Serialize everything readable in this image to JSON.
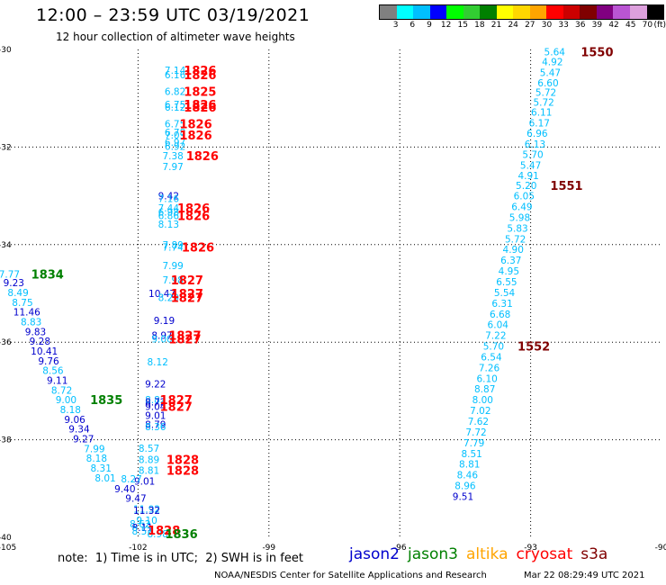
{
  "header": {
    "title": "12:00 – 23:59 UTC 03/19/2021",
    "subtitle": "12 hour collection of altimeter wave heights"
  },
  "colorbar": {
    "unit": "(ft)",
    "colors": [
      "#808080",
      "#00ffff",
      "#00bfff",
      "#0000ff",
      "#00ff00",
      "#32cd32",
      "#008000",
      "#ffff00",
      "#ffd700",
      "#ffa500",
      "#ff0000",
      "#cc0000",
      "#800000",
      "#800080",
      "#ba55d3",
      "#dda0dd",
      "#000000"
    ],
    "labels": [
      "3",
      "6",
      "9",
      "12",
      "15",
      "18",
      "21",
      "24",
      "27",
      "30",
      "33",
      "36",
      "39",
      "42",
      "45",
      "70"
    ]
  },
  "axes": {
    "x_ticks": [
      "-105",
      "-102",
      "-99",
      "-96",
      "-93",
      "-90"
    ],
    "y_ticks": [
      "-30",
      "-32",
      "-34",
      "-36",
      "-38",
      "-40"
    ],
    "x_values": [
      -105,
      -102,
      -99,
      -96,
      -93,
      -90
    ],
    "y_values": [
      -30,
      -32,
      -34,
      -36,
      -38,
      -40
    ],
    "xlim": [
      -105,
      -90
    ],
    "ylim": [
      -40,
      -30
    ]
  },
  "colors": {
    "cyan": "#00bfff",
    "blue": "#0000cd",
    "green": "#008000",
    "red": "#ff0000",
    "darkred": "#800000"
  },
  "tracks": {
    "track_a": [
      {
        "lon": -101.15,
        "lat": -30.42,
        "v": "7.14",
        "c": "cyan"
      },
      {
        "lon": -101.15,
        "lat": -30.52,
        "v": "6.16",
        "c": "cyan"
      },
      {
        "lon": -101.15,
        "lat": -30.86,
        "v": "6.82",
        "c": "cyan"
      },
      {
        "lon": -101.15,
        "lat": -31.13,
        "v": "6.75",
        "c": "cyan"
      },
      {
        "lon": -101.15,
        "lat": -31.18,
        "v": "6.12",
        "c": "cyan"
      },
      {
        "lon": -101.15,
        "lat": -31.52,
        "v": "6.75",
        "c": "cyan"
      },
      {
        "lon": -101.15,
        "lat": -31.7,
        "v": "6.78",
        "c": "cyan"
      },
      {
        "lon": -101.15,
        "lat": -31.75,
        "v": "7.03",
        "c": "cyan"
      },
      {
        "lon": -101.15,
        "lat": -31.9,
        "v": "6.97",
        "c": "cyan"
      },
      {
        "lon": -101.15,
        "lat": -31.98,
        "v": "6.92",
        "c": "cyan"
      },
      {
        "lon": -101.2,
        "lat": -32.18,
        "v": "7.38",
        "c": "cyan"
      },
      {
        "lon": -101.2,
        "lat": -32.4,
        "v": "7.97",
        "c": "cyan"
      },
      {
        "lon": -101.3,
        "lat": -33.0,
        "v": "9.42",
        "c": "blue"
      },
      {
        "lon": -101.3,
        "lat": -33.05,
        "v": "7.16",
        "c": "cyan"
      },
      {
        "lon": -101.3,
        "lat": -33.25,
        "v": "7.44",
        "c": "cyan"
      },
      {
        "lon": -101.3,
        "lat": -33.33,
        "v": "6.98",
        "c": "cyan"
      },
      {
        "lon": -101.3,
        "lat": -33.4,
        "v": "6.86",
        "c": "cyan"
      },
      {
        "lon": -101.3,
        "lat": -33.58,
        "v": "8.13",
        "c": "cyan"
      },
      {
        "lon": -101.2,
        "lat": -34.0,
        "v": "7.89",
        "c": "cyan"
      },
      {
        "lon": -101.2,
        "lat": -34.05,
        "v": "7.74",
        "c": "cyan"
      },
      {
        "lon": -101.2,
        "lat": -34.43,
        "v": "7.99",
        "c": "cyan"
      },
      {
        "lon": -101.2,
        "lat": -34.72,
        "v": "7.98",
        "c": "cyan"
      },
      {
        "lon": -101.45,
        "lat": -35.0,
        "v": "10.47",
        "c": "blue"
      },
      {
        "lon": -101.3,
        "lat": -35.08,
        "v": "8.29",
        "c": "cyan"
      },
      {
        "lon": -101.4,
        "lat": -35.55,
        "v": "9.19",
        "c": "blue"
      },
      {
        "lon": -101.45,
        "lat": -35.86,
        "v": "8.97",
        "c": "blue"
      },
      {
        "lon": -101.45,
        "lat": -35.93,
        "v": "9.00",
        "c": "cyan"
      },
      {
        "lon": -101.55,
        "lat": -36.4,
        "v": "8.12",
        "c": "cyan"
      },
      {
        "lon": -101.6,
        "lat": -36.85,
        "v": "9.22",
        "c": "blue"
      },
      {
        "lon": -101.6,
        "lat": -37.18,
        "v": "8.82",
        "c": "cyan"
      },
      {
        "lon": -101.6,
        "lat": -37.22,
        "v": "8.72",
        "c": "blue"
      },
      {
        "lon": -101.6,
        "lat": -37.32,
        "v": "9.04",
        "c": "blue"
      },
      {
        "lon": -101.6,
        "lat": -37.5,
        "v": "9.01",
        "c": "blue"
      },
      {
        "lon": -101.6,
        "lat": -37.68,
        "v": "8.79",
        "c": "blue"
      },
      {
        "lon": -101.6,
        "lat": -37.73,
        "v": "8.36",
        "c": "cyan"
      },
      {
        "lon": -101.75,
        "lat": -38.17,
        "v": "8.57",
        "c": "cyan"
      },
      {
        "lon": -101.75,
        "lat": -38.4,
        "v": "8.89",
        "c": "cyan"
      },
      {
        "lon": -101.75,
        "lat": -38.63,
        "v": "8.81",
        "c": "cyan"
      },
      {
        "lon": -101.85,
        "lat": -38.85,
        "v": "9.01",
        "c": "blue"
      },
      {
        "lon": -102.15,
        "lat": -38.8,
        "v": "8.27",
        "c": "cyan"
      },
      {
        "lon": -102.3,
        "lat": -39.0,
        "v": "9.40",
        "c": "blue"
      },
      {
        "lon": -102.05,
        "lat": -39.2,
        "v": "9.47",
        "c": "blue"
      },
      {
        "lon": -101.8,
        "lat": -39.42,
        "v": "11.92",
        "c": "cyan"
      },
      {
        "lon": -101.8,
        "lat": -39.45,
        "v": "11.32",
        "c": "blue"
      },
      {
        "lon": -101.8,
        "lat": -39.65,
        "v": "9.10",
        "c": "cyan"
      },
      {
        "lon": -101.95,
        "lat": -39.72,
        "v": "8.62",
        "c": "cyan"
      },
      {
        "lon": -101.9,
        "lat": -39.8,
        "v": "8.11",
        "c": "blue"
      },
      {
        "lon": -101.9,
        "lat": -39.87,
        "v": "8.52",
        "c": "cyan"
      },
      {
        "lon": -101.55,
        "lat": -39.93,
        "v": "8.98",
        "c": "cyan"
      }
    ],
    "track_b": [
      {
        "lon": -104.95,
        "lat": -34.6,
        "v": "7.77",
        "c": "cyan"
      },
      {
        "lon": -104.85,
        "lat": -34.78,
        "v": "9.23",
        "c": "blue"
      },
      {
        "lon": -104.75,
        "lat": -34.98,
        "v": "8.49",
        "c": "cyan"
      },
      {
        "lon": -104.65,
        "lat": -35.18,
        "v": "8.75",
        "c": "cyan"
      },
      {
        "lon": -104.55,
        "lat": -35.38,
        "v": "11.46",
        "c": "blue"
      },
      {
        "lon": -104.45,
        "lat": -35.58,
        "v": "8.83",
        "c": "cyan"
      },
      {
        "lon": -104.35,
        "lat": -35.78,
        "v": "9.83",
        "c": "blue"
      },
      {
        "lon": -104.25,
        "lat": -35.98,
        "v": "9.28",
        "c": "blue"
      },
      {
        "lon": -104.15,
        "lat": -36.18,
        "v": "10.41",
        "c": "blue"
      },
      {
        "lon": -104.05,
        "lat": -36.38,
        "v": "9.76",
        "c": "blue"
      },
      {
        "lon": -103.95,
        "lat": -36.58,
        "v": "8.56",
        "c": "cyan"
      },
      {
        "lon": -103.85,
        "lat": -36.78,
        "v": "9.11",
        "c": "blue"
      },
      {
        "lon": -103.75,
        "lat": -36.98,
        "v": "8.72",
        "c": "cyan"
      },
      {
        "lon": -103.65,
        "lat": -37.18,
        "v": "9.00",
        "c": "cyan"
      },
      {
        "lon": -103.55,
        "lat": -37.38,
        "v": "8.18",
        "c": "cyan"
      },
      {
        "lon": -103.45,
        "lat": -37.58,
        "v": "9.06",
        "c": "blue"
      },
      {
        "lon": -103.35,
        "lat": -37.78,
        "v": "9.34",
        "c": "blue"
      },
      {
        "lon": -103.25,
        "lat": -37.98,
        "v": "9.27",
        "c": "blue"
      },
      {
        "lon": -103.0,
        "lat": -38.18,
        "v": "7.99",
        "c": "cyan"
      },
      {
        "lon": -102.95,
        "lat": -38.38,
        "v": "8.18",
        "c": "cyan"
      },
      {
        "lon": -102.85,
        "lat": -38.58,
        "v": "8.31",
        "c": "cyan"
      },
      {
        "lon": -102.75,
        "lat": -38.78,
        "v": "8.01",
        "c": "cyan"
      }
    ],
    "track_c": [
      {
        "lon": -92.45,
        "lat": -30.05,
        "v": "5.64",
        "c": "cyan"
      },
      {
        "lon": -92.5,
        "lat": -30.25,
        "v": "4.92",
        "c": "cyan"
      },
      {
        "lon": -92.55,
        "lat": -30.47,
        "v": "5.47",
        "c": "cyan"
      },
      {
        "lon": -92.6,
        "lat": -30.68,
        "v": "6.60",
        "c": "cyan"
      },
      {
        "lon": -92.65,
        "lat": -30.88,
        "v": "5.72",
        "c": "cyan"
      },
      {
        "lon": -92.7,
        "lat": -31.08,
        "v": "5.72",
        "c": "cyan"
      },
      {
        "lon": -92.75,
        "lat": -31.28,
        "v": "6.11",
        "c": "cyan"
      },
      {
        "lon": -92.8,
        "lat": -31.5,
        "v": "6.17",
        "c": "cyan"
      },
      {
        "lon": -92.85,
        "lat": -31.72,
        "v": "6.96",
        "c": "cyan"
      },
      {
        "lon": -92.9,
        "lat": -31.94,
        "v": "6.13",
        "c": "cyan"
      },
      {
        "lon": -92.95,
        "lat": -32.15,
        "v": "5.70",
        "c": "cyan"
      },
      {
        "lon": -93.0,
        "lat": -32.37,
        "v": "5.47",
        "c": "cyan"
      },
      {
        "lon": -93.05,
        "lat": -32.58,
        "v": "4.91",
        "c": "cyan"
      },
      {
        "lon": -93.1,
        "lat": -32.79,
        "v": "5.20",
        "c": "cyan"
      },
      {
        "lon": -93.15,
        "lat": -33.0,
        "v": "6.05",
        "c": "cyan"
      },
      {
        "lon": -93.2,
        "lat": -33.22,
        "v": "6.49",
        "c": "cyan"
      },
      {
        "lon": -93.25,
        "lat": -33.44,
        "v": "5.98",
        "c": "cyan"
      },
      {
        "lon": -93.3,
        "lat": -33.66,
        "v": "5.83",
        "c": "cyan"
      },
      {
        "lon": -93.35,
        "lat": -33.88,
        "v": "5.72",
        "c": "cyan"
      },
      {
        "lon": -93.4,
        "lat": -34.1,
        "v": "4.90",
        "c": "cyan"
      },
      {
        "lon": -93.45,
        "lat": -34.32,
        "v": "6.37",
        "c": "cyan"
      },
      {
        "lon": -93.5,
        "lat": -34.54,
        "v": "4.95",
        "c": "cyan"
      },
      {
        "lon": -93.55,
        "lat": -34.76,
        "v": "6.55",
        "c": "cyan"
      },
      {
        "lon": -93.6,
        "lat": -34.98,
        "v": "5.54",
        "c": "cyan"
      },
      {
        "lon": -93.65,
        "lat": -35.2,
        "v": "6.31",
        "c": "cyan"
      },
      {
        "lon": -93.7,
        "lat": -35.42,
        "v": "6.68",
        "c": "cyan"
      },
      {
        "lon": -93.75,
        "lat": -35.64,
        "v": "6.04",
        "c": "cyan"
      },
      {
        "lon": -93.8,
        "lat": -35.86,
        "v": "7.22",
        "c": "cyan"
      },
      {
        "lon": -93.85,
        "lat": -36.08,
        "v": "5.70",
        "c": "cyan"
      },
      {
        "lon": -93.9,
        "lat": -36.3,
        "v": "6.54",
        "c": "cyan"
      },
      {
        "lon": -93.95,
        "lat": -36.52,
        "v": "7.26",
        "c": "cyan"
      },
      {
        "lon": -94.0,
        "lat": -36.74,
        "v": "6.10",
        "c": "cyan"
      },
      {
        "lon": -94.05,
        "lat": -36.96,
        "v": "8.87",
        "c": "cyan"
      },
      {
        "lon": -94.1,
        "lat": -37.18,
        "v": "8.00",
        "c": "cyan"
      },
      {
        "lon": -94.15,
        "lat": -37.4,
        "v": "7.02",
        "c": "cyan"
      },
      {
        "lon": -94.2,
        "lat": -37.62,
        "v": "7.62",
        "c": "cyan"
      },
      {
        "lon": -94.25,
        "lat": -37.84,
        "v": "7.72",
        "c": "cyan"
      },
      {
        "lon": -94.3,
        "lat": -38.06,
        "v": "7.79",
        "c": "cyan"
      },
      {
        "lon": -94.35,
        "lat": -38.28,
        "v": "8.51",
        "c": "cyan"
      },
      {
        "lon": -94.4,
        "lat": -38.5,
        "v": "8.81",
        "c": "cyan"
      },
      {
        "lon": -94.45,
        "lat": -38.72,
        "v": "8.46",
        "c": "cyan"
      },
      {
        "lon": -94.5,
        "lat": -38.94,
        "v": "8.96",
        "c": "cyan"
      },
      {
        "lon": -94.55,
        "lat": -39.16,
        "v": "9.51",
        "c": "blue"
      }
    ]
  },
  "time_labels": [
    {
      "lon": -100.95,
      "lat": -30.42,
      "t": "1826",
      "c": "red"
    },
    {
      "lon": -100.95,
      "lat": -30.52,
      "t": "1826",
      "c": "red"
    },
    {
      "lon": -100.95,
      "lat": -30.86,
      "t": "1825",
      "c": "red"
    },
    {
      "lon": -100.95,
      "lat": -31.13,
      "t": "1826",
      "c": "red"
    },
    {
      "lon": -100.95,
      "lat": -31.18,
      "t": "1826",
      "c": "red"
    },
    {
      "lon": -101.05,
      "lat": -31.52,
      "t": "1826",
      "c": "red"
    },
    {
      "lon": -101.05,
      "lat": -31.75,
      "t": "1826",
      "c": "red"
    },
    {
      "lon": -100.9,
      "lat": -32.18,
      "t": "1826",
      "c": "red"
    },
    {
      "lon": -101.1,
      "lat": -33.25,
      "t": "1826",
      "c": "red"
    },
    {
      "lon": -101.1,
      "lat": -33.4,
      "t": "1826",
      "c": "red"
    },
    {
      "lon": -101.0,
      "lat": -34.05,
      "t": "1826",
      "c": "red"
    },
    {
      "lon": -101.25,
      "lat": -34.72,
      "t": "1827",
      "c": "red"
    },
    {
      "lon": -101.25,
      "lat": -35.0,
      "t": "1827",
      "c": "red"
    },
    {
      "lon": -101.25,
      "lat": -35.08,
      "t": "1827",
      "c": "red"
    },
    {
      "lon": -101.3,
      "lat": -35.86,
      "t": "1827",
      "c": "red"
    },
    {
      "lon": -101.3,
      "lat": -35.93,
      "t": "1827",
      "c": "red"
    },
    {
      "lon": -101.5,
      "lat": -37.18,
      "t": "1827",
      "c": "red"
    },
    {
      "lon": -101.5,
      "lat": -37.32,
      "t": "1827",
      "c": "red"
    },
    {
      "lon": -101.35,
      "lat": -38.4,
      "t": "1828",
      "c": "red"
    },
    {
      "lon": -101.35,
      "lat": -38.63,
      "t": "1828",
      "c": "red"
    },
    {
      "lon": -101.78,
      "lat": -39.85,
      "t": "1828",
      "c": "red"
    },
    {
      "lon": -101.38,
      "lat": -39.93,
      "t": "1836",
      "c": "green"
    },
    {
      "lon": -104.45,
      "lat": -34.6,
      "t": "1834",
      "c": "green"
    },
    {
      "lon": -103.1,
      "lat": -37.18,
      "t": "1835",
      "c": "green"
    },
    {
      "lon": -91.85,
      "lat": -30.05,
      "t": "1550",
      "c": "darkred"
    },
    {
      "lon": -92.55,
      "lat": -32.79,
      "t": "1551",
      "c": "darkred"
    },
    {
      "lon": -93.3,
      "lat": -36.08,
      "t": "1552",
      "c": "darkred"
    }
  ],
  "footer": {
    "note": "note:  1) Time is in UTC;  2) SWH is in feet",
    "credit": "NOAA/NESDIS Center for Satellite Applications and Research",
    "timestamp": "Mar 22 08:29:49 UTC 2021"
  },
  "legend": [
    {
      "name": "jason2",
      "color": "#0000cd"
    },
    {
      "name": "jason3",
      "color": "#008000"
    },
    {
      "name": "altika",
      "color": "#ffa500"
    },
    {
      "name": "cryosat",
      "color": "#ff0000"
    },
    {
      "name": "s3a",
      "color": "#800000"
    }
  ]
}
